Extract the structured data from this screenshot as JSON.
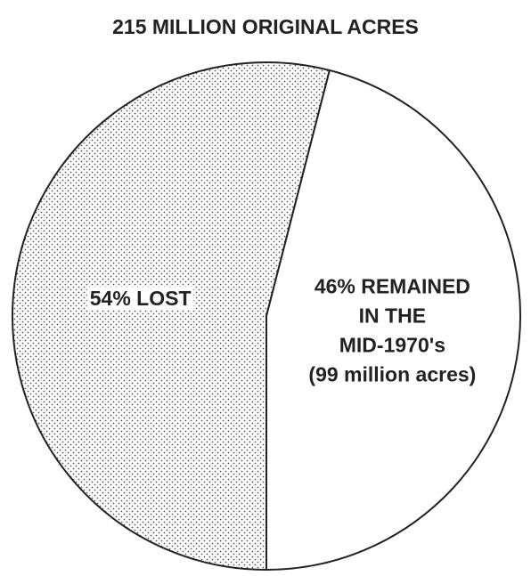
{
  "chart_data": {
    "type": "pie",
    "title": "215 MILLION ORIGINAL ACRES",
    "values": [
      54,
      46
    ],
    "value_labels": [
      [
        "54% LOST"
      ],
      [
        "46% REMAINED",
        "IN THE",
        "MID-1970's",
        "(99 million acres)"
      ]
    ],
    "colors": [
      "#555555",
      "#ffffff"
    ]
  }
}
